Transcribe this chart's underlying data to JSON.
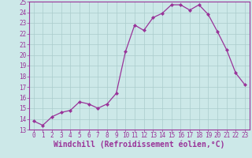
{
  "x": [
    0,
    1,
    2,
    3,
    4,
    5,
    6,
    7,
    8,
    9,
    10,
    11,
    12,
    13,
    14,
    15,
    16,
    17,
    18,
    19,
    20,
    21,
    22,
    23
  ],
  "y": [
    13.8,
    13.4,
    14.2,
    14.6,
    14.8,
    15.6,
    15.4,
    15.0,
    15.4,
    16.4,
    20.3,
    22.8,
    22.3,
    23.5,
    23.9,
    24.7,
    24.7,
    24.2,
    24.7,
    23.8,
    22.2,
    20.5,
    18.3,
    17.2
  ],
  "line_color": "#993399",
  "marker": "D",
  "markersize": 2,
  "linewidth": 0.9,
  "bg_color": "#cce8e8",
  "grid_color": "#aacccc",
  "xlabel": "Windchill (Refroidissement éolien,°C)",
  "xlabel_fontsize": 7,
  "xlim": [
    -0.5,
    23.5
  ],
  "ylim": [
    13,
    25
  ],
  "yticks": [
    13,
    14,
    15,
    16,
    17,
    18,
    19,
    20,
    21,
    22,
    23,
    24,
    25
  ],
  "xticks": [
    0,
    1,
    2,
    3,
    4,
    5,
    6,
    7,
    8,
    9,
    10,
    11,
    12,
    13,
    14,
    15,
    16,
    17,
    18,
    19,
    20,
    21,
    22,
    23
  ],
  "tick_fontsize": 5.5,
  "tick_color": "#993399",
  "spine_color": "#993399",
  "xlabel_color": "#993399"
}
